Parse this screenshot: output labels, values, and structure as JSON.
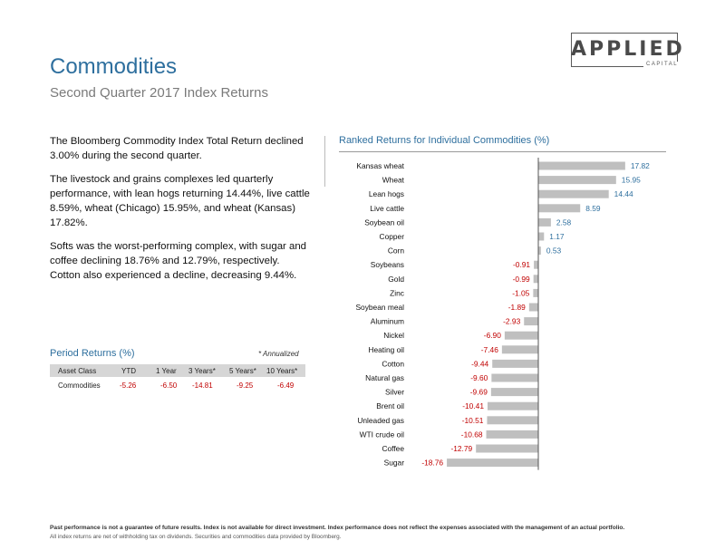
{
  "logo": {
    "word": "APPLIED",
    "sub": "CAPITAL"
  },
  "header": {
    "title": "Commodities",
    "subtitle": "Second Quarter 2017 Index Returns"
  },
  "commentary": [
    "The Bloomberg Commodity Index Total Return declined 3.00% during the second quarter.",
    "The livestock and grains complexes led quarterly performance, with lean hogs returning 14.44%, live cattle 8.59%, wheat (Chicago) 15.95%, and wheat (Kansas) 17.82%.",
    "Softs was the worst-performing complex, with sugar and coffee declining 18.76% and 12.79%, respectively. Cotton also experienced a decline, decreasing 9.44%."
  ],
  "period_returns": {
    "title": "Period Returns (%)",
    "note": "* Annualized",
    "headers": [
      "Asset Class",
      "YTD",
      "1 Year",
      "3 Years*",
      "5 Years*",
      "10 Years*"
    ],
    "row": [
      "Commodities",
      "-5.26",
      "-6.50",
      "-14.81",
      "-9.25",
      "-6.49"
    ]
  },
  "chart_data": {
    "type": "bar",
    "orientation": "horizontal",
    "title": "Ranked Returns for Individual Commodities (%)",
    "categories": [
      "Kansas wheat",
      "Wheat",
      "Lean hogs",
      "Live cattle",
      "Soybean oil",
      "Copper",
      "Corn",
      "Soybeans",
      "Gold",
      "Zinc",
      "Soybean meal",
      "Aluminum",
      "Nickel",
      "Heating oil",
      "Cotton",
      "Natural gas",
      "Silver",
      "Brent oil",
      "Unleaded gas",
      "WTI crude oil",
      "Coffee",
      "Sugar"
    ],
    "values": [
      17.82,
      15.95,
      14.44,
      8.59,
      2.58,
      1.17,
      0.53,
      -0.91,
      -0.99,
      -1.05,
      -1.89,
      -2.93,
      -6.9,
      -7.46,
      -9.44,
      -9.6,
      -9.69,
      -10.41,
      -10.51,
      -10.68,
      -12.79,
      -18.76
    ],
    "value_labels": [
      "17.82",
      "15.95",
      "14.44",
      "8.59",
      "2.58",
      "1.17",
      "0.53",
      "-0.91",
      "-0.99",
      "-1.05",
      "-1.89",
      "-2.93",
      "-6.90",
      "-7.46",
      "-9.44",
      "-9.60",
      "-9.69",
      "-10.41",
      "-10.51",
      "-10.68",
      "-12.79",
      "-18.76"
    ],
    "xlim": [
      -21,
      22
    ],
    "grid": false,
    "bar_color": "#bfbfbf",
    "positive_label_color": "#2e6f9e",
    "negative_label_color": "#c00000"
  },
  "footer": {
    "line1": "Past performance is not a guarantee of future results. Index is not available for direct investment. Index performance does not reflect the expenses associated with the management of an actual portfolio.",
    "line2": "All index returns are net of withholding tax on dividends. Securities and commodities data provided by Bloomberg."
  }
}
